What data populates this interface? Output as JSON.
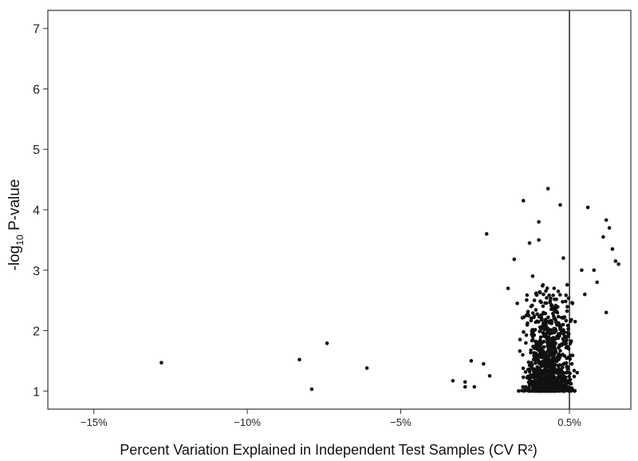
{
  "chart_data": {
    "type": "scatter",
    "title": "",
    "xlabel": "Percent Variation Explained in Independent Test Samples (CV R²)",
    "ylabel_parts": {
      "prefix": "-log",
      "subscript": "10",
      "suffix": " P-value"
    },
    "xlim": [
      -16.5,
      2.5
    ],
    "ylim": [
      0.7,
      7.3
    ],
    "x_ticks": [
      {
        "value": -15,
        "label": "−15%"
      },
      {
        "value": -10,
        "label": "−10%"
      },
      {
        "value": -5,
        "label": "−5%"
      },
      {
        "value": 0.5,
        "label": "0.5%"
      }
    ],
    "y_ticks": [
      {
        "value": 1,
        "label": "1"
      },
      {
        "value": 2,
        "label": "2"
      },
      {
        "value": 3,
        "label": "3"
      },
      {
        "value": 4,
        "label": "4"
      },
      {
        "value": 5,
        "label": "5"
      },
      {
        "value": 6,
        "label": "6"
      },
      {
        "value": 7,
        "label": "7"
      }
    ],
    "reference_line_x": 0.5,
    "grid": false,
    "point_color": "#111111",
    "outlier_points": [
      [
        -12.8,
        1.47
      ],
      [
        -8.3,
        1.52
      ],
      [
        -7.4,
        1.79
      ],
      [
        -7.9,
        1.03
      ],
      [
        -6.1,
        1.38
      ],
      [
        -2.2,
        3.6
      ],
      [
        -1.0,
        4.15
      ],
      [
        -0.2,
        4.35
      ],
      [
        -0.5,
        3.8
      ],
      [
        0.2,
        4.08
      ],
      [
        1.1,
        4.04
      ],
      [
        1.7,
        3.83
      ],
      [
        1.8,
        3.7
      ],
      [
        1.6,
        3.55
      ],
      [
        1.9,
        3.35
      ],
      [
        2.0,
        3.15
      ],
      [
        2.1,
        3.1
      ],
      [
        1.7,
        2.3
      ],
      [
        -1.5,
        2.7
      ],
      [
        -1.3,
        3.18
      ],
      [
        -0.8,
        3.45
      ],
      [
        -0.5,
        3.5
      ],
      [
        0.3,
        3.2
      ],
      [
        0.9,
        3.0
      ],
      [
        1.3,
        3.0
      ],
      [
        -3.3,
        1.17
      ],
      [
        -2.9,
        1.15
      ],
      [
        -2.7,
        1.5
      ],
      [
        -2.3,
        1.45
      ],
      [
        -2.6,
        1.07
      ],
      [
        -2.9,
        1.07
      ],
      [
        -2.1,
        1.25
      ],
      [
        -0.7,
        2.9
      ],
      [
        -1.2,
        2.45
      ],
      [
        0.0,
        2.7
      ],
      [
        0.6,
        2.45
      ],
      [
        1.0,
        2.6
      ],
      [
        1.4,
        2.8
      ]
    ],
    "cluster": {
      "count": 1000,
      "x_center": -0.15,
      "x_spread": 0.7,
      "x_range": [
        -2.4,
        1.4
      ],
      "y_min": 1.0,
      "y_max": 2.9,
      "seed": 7
    }
  }
}
